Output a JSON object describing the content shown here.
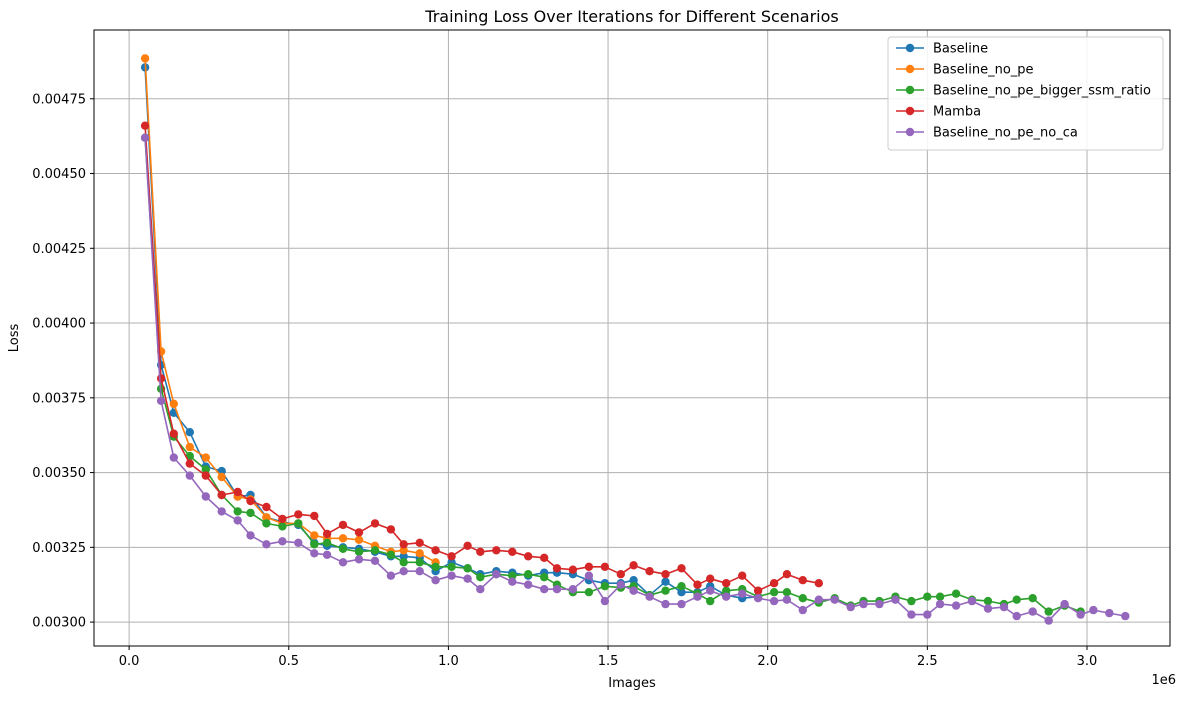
{
  "chart_data": {
    "type": "line",
    "title": "Training Loss Over Iterations for Different Scenarios",
    "xlabel": "Images",
    "ylabel": "Loss",
    "x_offset_label": "1e6",
    "xlim": [
      -0.11,
      3.26
    ],
    "ylim": [
      0.00292,
      0.00498
    ],
    "x_ticks": [
      0.0,
      0.5,
      1.0,
      1.5,
      2.0,
      2.5,
      3.0
    ],
    "x_tick_labels": [
      "0.0",
      "0.5",
      "1.0",
      "1.5",
      "2.0",
      "2.5",
      "3.0"
    ],
    "y_ticks": [
      0.003,
      0.00325,
      0.0035,
      0.00375,
      0.004,
      0.00425,
      0.0045,
      0.00475
    ],
    "y_tick_labels": [
      "0.00300",
      "0.00325",
      "0.00350",
      "0.00375",
      "0.00400",
      "0.00425",
      "0.00450",
      "0.00475"
    ],
    "grid": true,
    "legend_position": "top-right",
    "series": [
      {
        "name": "Baseline",
        "color": "#1f77b4",
        "x": [
          0.05,
          0.1,
          0.14,
          0.19,
          0.24,
          0.29,
          0.34,
          0.38,
          0.43,
          0.48,
          0.53,
          0.58,
          0.62,
          0.67,
          0.72,
          0.77,
          0.82,
          0.86,
          0.91,
          0.96,
          1.01,
          1.06,
          1.1,
          1.15,
          1.2,
          1.25,
          1.3,
          1.34,
          1.39,
          1.44,
          1.49,
          1.54,
          1.58,
          1.63,
          1.68,
          1.73,
          1.78,
          1.82,
          1.87,
          1.92,
          1.97
        ],
        "y": [
          0.004855,
          0.00386,
          0.0037,
          0.003635,
          0.00352,
          0.003505,
          0.00342,
          0.003425,
          0.00335,
          0.003335,
          0.003325,
          0.003265,
          0.003255,
          0.00325,
          0.003245,
          0.003235,
          0.00322,
          0.00322,
          0.003215,
          0.00317,
          0.0032,
          0.00318,
          0.00316,
          0.00317,
          0.003165,
          0.003155,
          0.003165,
          0.003165,
          0.00316,
          0.00314,
          0.00313,
          0.00313,
          0.00314,
          0.00309,
          0.003135,
          0.0031,
          0.0031,
          0.00312,
          0.00309,
          0.00308,
          0.003085
        ]
      },
      {
        "name": "Baseline_no_pe",
        "color": "#ff7f0e",
        "x": [
          0.05,
          0.1,
          0.14,
          0.19,
          0.24,
          0.29,
          0.34,
          0.38,
          0.43,
          0.48,
          0.53,
          0.58,
          0.62,
          0.67,
          0.72,
          0.77,
          0.82,
          0.86,
          0.91,
          0.96
        ],
        "y": [
          0.004885,
          0.003905,
          0.00373,
          0.003585,
          0.00355,
          0.003485,
          0.00342,
          0.00341,
          0.00335,
          0.00333,
          0.00333,
          0.00329,
          0.00328,
          0.00328,
          0.003275,
          0.003255,
          0.003235,
          0.00324,
          0.00323,
          0.0032
        ]
      },
      {
        "name": "Baseline_no_pe_bigger_ssm_ratio",
        "color": "#2ca02c",
        "x": [
          0.05,
          0.1,
          0.14,
          0.19,
          0.24,
          0.29,
          0.34,
          0.38,
          0.43,
          0.48,
          0.53,
          0.58,
          0.62,
          0.67,
          0.72,
          0.77,
          0.82,
          0.86,
          0.91,
          0.96,
          1.01,
          1.06,
          1.1,
          1.15,
          1.2,
          1.25,
          1.3,
          1.34,
          1.39,
          1.44,
          1.49,
          1.54,
          1.58,
          1.63,
          1.68,
          1.73,
          1.78,
          1.82,
          1.87,
          1.92,
          1.97,
          2.02,
          2.06,
          2.11,
          2.16,
          2.21,
          2.26,
          2.3,
          2.35,
          2.4,
          2.45,
          2.5,
          2.54,
          2.59,
          2.64,
          2.69,
          2.74,
          2.78,
          2.83,
          2.88,
          2.93,
          2.98
        ],
        "y": [
          0.00462,
          0.00378,
          0.00362,
          0.003555,
          0.00351,
          0.003425,
          0.00337,
          0.003365,
          0.00333,
          0.00332,
          0.00333,
          0.00326,
          0.003265,
          0.003245,
          0.003235,
          0.00324,
          0.003225,
          0.0032,
          0.0032,
          0.003185,
          0.003185,
          0.00318,
          0.00315,
          0.00316,
          0.003155,
          0.00316,
          0.00315,
          0.003125,
          0.0031,
          0.0031,
          0.00312,
          0.003115,
          0.00312,
          0.00309,
          0.003105,
          0.00312,
          0.003095,
          0.00307,
          0.003105,
          0.00311,
          0.003085,
          0.0031,
          0.0031,
          0.00308,
          0.003065,
          0.00308,
          0.003055,
          0.00307,
          0.00307,
          0.003085,
          0.00307,
          0.003085,
          0.003085,
          0.003095,
          0.003075,
          0.00307,
          0.00306,
          0.003075,
          0.00308,
          0.003035,
          0.003055,
          0.003035
        ]
      },
      {
        "name": "Mamba",
        "color": "#d62728",
        "x": [
          0.05,
          0.1,
          0.14,
          0.19,
          0.24,
          0.29,
          0.34,
          0.38,
          0.43,
          0.48,
          0.53,
          0.58,
          0.62,
          0.67,
          0.72,
          0.77,
          0.82,
          0.86,
          0.91,
          0.96,
          1.01,
          1.06,
          1.1,
          1.15,
          1.2,
          1.25,
          1.3,
          1.34,
          1.39,
          1.44,
          1.49,
          1.54,
          1.58,
          1.63,
          1.68,
          1.73,
          1.78,
          1.82,
          1.87,
          1.92,
          1.97,
          2.02,
          2.06,
          2.11,
          2.16
        ],
        "y": [
          0.00466,
          0.003815,
          0.00363,
          0.00353,
          0.00349,
          0.003425,
          0.003435,
          0.003405,
          0.003385,
          0.003345,
          0.00336,
          0.003355,
          0.003295,
          0.003325,
          0.0033,
          0.00333,
          0.00331,
          0.00326,
          0.003265,
          0.00324,
          0.00322,
          0.003255,
          0.003235,
          0.00324,
          0.003235,
          0.00322,
          0.003215,
          0.00318,
          0.003175,
          0.003185,
          0.003185,
          0.00316,
          0.00319,
          0.00317,
          0.00316,
          0.00318,
          0.003125,
          0.003145,
          0.00313,
          0.003155,
          0.003105,
          0.00313,
          0.00316,
          0.00314,
          0.00313
        ]
      },
      {
        "name": "Baseline_no_pe_no_ca",
        "color": "#9467bd",
        "x": [
          0.05,
          0.1,
          0.14,
          0.19,
          0.24,
          0.29,
          0.34,
          0.38,
          0.43,
          0.48,
          0.53,
          0.58,
          0.62,
          0.67,
          0.72,
          0.77,
          0.82,
          0.86,
          0.91,
          0.96,
          1.01,
          1.06,
          1.1,
          1.15,
          1.2,
          1.25,
          1.3,
          1.34,
          1.39,
          1.44,
          1.49,
          1.54,
          1.58,
          1.63,
          1.68,
          1.73,
          1.78,
          1.82,
          1.87,
          1.92,
          1.97,
          2.02,
          2.06,
          2.11,
          2.16,
          2.21,
          2.26,
          2.3,
          2.35,
          2.4,
          2.45,
          2.5,
          2.54,
          2.59,
          2.64,
          2.69,
          2.74,
          2.78,
          2.83,
          2.88,
          2.93,
          2.98,
          3.02,
          3.07,
          3.12
        ],
        "y": [
          0.00462,
          0.00374,
          0.00355,
          0.00349,
          0.00342,
          0.00337,
          0.00334,
          0.00329,
          0.00326,
          0.00327,
          0.003265,
          0.00323,
          0.003225,
          0.0032,
          0.00321,
          0.003205,
          0.003155,
          0.00317,
          0.00317,
          0.00314,
          0.003155,
          0.003145,
          0.00311,
          0.00316,
          0.003135,
          0.003125,
          0.00311,
          0.00311,
          0.00311,
          0.003155,
          0.00307,
          0.003125,
          0.003105,
          0.003085,
          0.00306,
          0.00306,
          0.003085,
          0.003105,
          0.003085,
          0.003095,
          0.00308,
          0.00307,
          0.003075,
          0.00304,
          0.003075,
          0.003075,
          0.00305,
          0.00306,
          0.00306,
          0.003075,
          0.003025,
          0.003025,
          0.00306,
          0.003055,
          0.00307,
          0.003045,
          0.00305,
          0.00302,
          0.003035,
          0.003005,
          0.00306,
          0.003025,
          0.00304,
          0.00303,
          0.00302
        ]
      }
    ]
  }
}
